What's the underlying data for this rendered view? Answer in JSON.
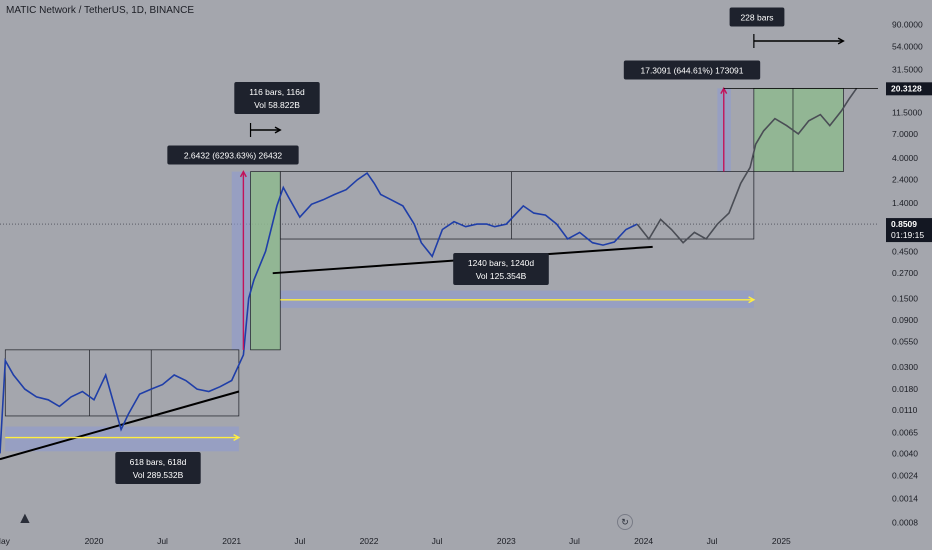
{
  "title": "MATIC Network / TetherUS, 1D, BINANCE",
  "icons": {
    "logo": "tradingview-logo-icon",
    "replay": "replay-icon"
  },
  "colors": {
    "background": "#a4a6ad",
    "candles_history": "#1f3ea8",
    "candles_projection": "#4a4d55",
    "range_box_fill": "#8fb88f",
    "target_box_fill": "#8fb88f",
    "measure_bar_fill": "#8f9bd0",
    "measure_arrow": "#c3125a",
    "time_arrow": "#ffee40",
    "label_bg": "#1e222d",
    "price_label_bg": "#131722"
  },
  "chart_data": {
    "type": "line",
    "scale": "log",
    "yticks": [
      "90.0000",
      "54.0000",
      "31.5000",
      "20.3128",
      "11.5000",
      "7.0000",
      "4.0000",
      "2.4000",
      "1.4000",
      "0.8509",
      "0.4500",
      "0.2700",
      "0.1500",
      "0.0900",
      "0.0550",
      "0.0300",
      "0.0180",
      "0.0110",
      "0.0065",
      "0.0040",
      "0.0024",
      "0.0014",
      "0.0008"
    ],
    "xticks": [
      "May",
      "2020",
      "Jul",
      "2021",
      "Jul",
      "2022",
      "Jul",
      "2023",
      "Jul",
      "2024",
      "Jul",
      "2025"
    ],
    "xlim": [
      "2019-04-26",
      "2025-09-15"
    ],
    "ylim": [
      0.0007,
      160
    ],
    "current_price": {
      "value": "0.8509",
      "countdown": "01:19:15"
    },
    "target_price": {
      "value": "20.3128"
    },
    "series": [
      {
        "role": "history",
        "x": [
          "2019-04-26",
          "2019-05-10",
          "2019-06-01",
          "2019-07-01",
          "2019-08-01",
          "2019-09-01",
          "2019-10-01",
          "2019-11-01",
          "2019-12-01",
          "2020-01-01",
          "2020-02-01",
          "2020-03-13",
          "2020-04-01",
          "2020-05-01",
          "2020-06-01",
          "2020-07-01",
          "2020-08-01",
          "2020-09-01",
          "2020-10-01",
          "2020-11-01",
          "2020-12-01",
          "2021-01-01",
          "2021-02-01",
          "2021-02-15",
          "2021-03-01",
          "2021-04-01",
          "2021-05-01",
          "2021-05-18",
          "2021-06-01",
          "2021-07-01",
          "2021-08-01",
          "2021-09-01",
          "2021-10-01",
          "2021-11-01",
          "2021-12-01",
          "2021-12-27",
          "2022-01-15",
          "2022-02-01",
          "2022-03-01",
          "2022-04-01",
          "2022-05-01",
          "2022-05-20",
          "2022-06-18",
          "2022-07-15",
          "2022-08-15",
          "2022-09-15",
          "2022-10-15",
          "2022-11-10",
          "2022-12-01",
          "2023-01-01",
          "2023-02-15",
          "2023-03-15",
          "2023-04-15",
          "2023-05-15",
          "2023-06-13",
          "2023-07-15",
          "2023-08-18",
          "2023-09-15",
          "2023-10-15",
          "2023-11-15",
          "2023-12-15"
        ],
        "y": [
          0.004,
          0.035,
          0.025,
          0.018,
          0.015,
          0.014,
          0.012,
          0.015,
          0.017,
          0.014,
          0.025,
          0.007,
          0.01,
          0.016,
          0.018,
          0.02,
          0.025,
          0.022,
          0.018,
          0.017,
          0.019,
          0.022,
          0.04,
          0.15,
          0.23,
          0.45,
          1.3,
          2.0,
          1.6,
          1.0,
          1.35,
          1.5,
          1.7,
          1.9,
          2.4,
          2.8,
          2.2,
          1.7,
          1.5,
          1.3,
          0.85,
          0.55,
          0.4,
          0.75,
          0.9,
          0.8,
          0.85,
          0.85,
          0.8,
          0.85,
          1.3,
          1.1,
          1.05,
          0.85,
          0.6,
          0.7,
          0.55,
          0.52,
          0.56,
          0.75,
          0.85
        ]
      },
      {
        "role": "projection",
        "x": [
          "2023-12-15",
          "2024-01-15",
          "2024-02-15",
          "2024-03-15",
          "2024-04-15",
          "2024-05-15",
          "2024-06-15",
          "2024-07-15",
          "2024-08-15",
          "2024-09-15",
          "2024-10-10",
          "2024-10-25",
          "2024-11-15",
          "2024-12-15",
          "2025-01-15",
          "2025-02-15",
          "2025-03-15",
          "2025-04-15",
          "2025-05-10",
          "2025-06-10",
          "2025-07-01",
          "2025-07-20"
        ],
        "y": [
          0.85,
          0.6,
          0.95,
          0.75,
          0.55,
          0.7,
          0.6,
          0.85,
          1.1,
          2.2,
          3.2,
          5.5,
          7.5,
          10,
          8.5,
          7.0,
          9.5,
          11,
          8.5,
          12,
          16,
          20.3
        ]
      }
    ],
    "boxes": [
      {
        "kind": "range",
        "x": [
          "2019-05-10",
          "2021-01-20"
        ],
        "y": [
          0.0096,
          0.045
        ]
      },
      {
        "kind": "range",
        "x": [
          "2021-05-10",
          "2024-10-20"
        ],
        "y": [
          0.6,
          2.9
        ]
      },
      {
        "kind": "range",
        "x": [
          "2021-02-20",
          "2021-05-10"
        ],
        "y": [
          0.045,
          2.9
        ]
      },
      {
        "kind": "range",
        "x": [
          "2024-10-20",
          "2025-06-15"
        ],
        "y": [
          2.9,
          20.3
        ]
      }
    ],
    "annotations": [
      {
        "text": "618 bars, 618d",
        "text2": "Vol 289.532B"
      },
      {
        "text": "2.6432 (6293.63%) 26432"
      },
      {
        "text": "116 bars, 116d",
        "text2": "Vol 58.822B"
      },
      {
        "text": "1240 bars, 1240d",
        "text2": "Vol 125.354B"
      },
      {
        "text": "17.3091 (644.61%) 173091"
      },
      {
        "text": "228 bars"
      }
    ]
  }
}
